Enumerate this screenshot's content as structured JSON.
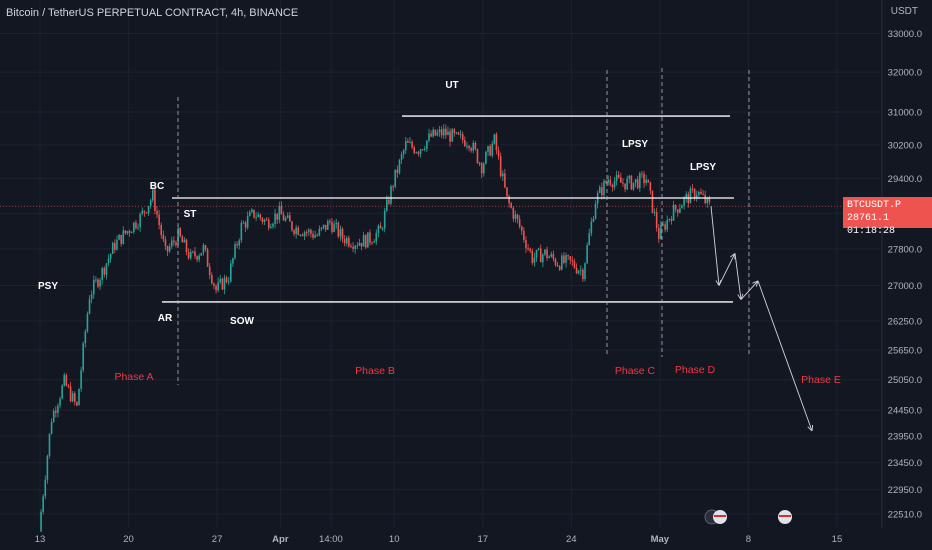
{
  "header": {
    "title": "Bitcoin / TetherUS PERPETUAL CONTRACT, 4h, BINANCE",
    "currency": "USDT"
  },
  "price_tag": {
    "symbol": "BTCUSDT.P",
    "price": "28761.1",
    "countdown": "01:18:28"
  },
  "colors": {
    "background": "#131722",
    "up": "#26a69a",
    "down": "#ef5350",
    "phase_label": "#f23645",
    "lines": "#ffffff"
  },
  "chart_data": {
    "type": "candlestick",
    "y_axis": {
      "ticks": [
        33000.0,
        32000.0,
        31000.0,
        30200.0,
        29400.0,
        28600.0,
        27800.0,
        27000.0,
        26250.0,
        25650.0,
        25050.0,
        24450.0,
        23950.0,
        23450.0,
        22950.0,
        22510.0
      ],
      "tick_labels": [
        "33000.0",
        "32000.0",
        "31000.0",
        "30200.0",
        "29400.0",
        "28600.0",
        "27800.0",
        "27000.0",
        "26250.0",
        "25650.0",
        "25050.0",
        "24450.0",
        "23950.0",
        "23450.0",
        "22950.0",
        "22510.0"
      ],
      "scale": "log",
      "current_price": 28761.1
    },
    "x_axis": {
      "tick_labels": [
        "13",
        "20",
        "27",
        "Apr",
        "14:00",
        "10",
        "17",
        "24",
        "May",
        "8",
        "15"
      ]
    },
    "price_path": [
      [
        "2023-03-13",
        22200
      ],
      [
        "2023-03-14",
        24300
      ],
      [
        "2023-03-15",
        25000
      ],
      [
        "2023-03-16",
        24500
      ],
      [
        "2023-03-17",
        26800
      ],
      [
        "2023-03-18",
        27300
      ],
      [
        "2023-03-19",
        27900
      ],
      [
        "2023-03-20",
        28200
      ],
      [
        "2023-03-21",
        28500
      ],
      [
        "2023-03-22",
        29000
      ],
      [
        "2023-03-23",
        27700
      ],
      [
        "2023-03-24",
        28100
      ],
      [
        "2023-03-25",
        27600
      ],
      [
        "2023-03-26",
        27800
      ],
      [
        "2023-03-27",
        26900
      ],
      [
        "2023-03-28",
        27200
      ],
      [
        "2023-03-29",
        28300
      ],
      [
        "2023-03-30",
        28600
      ],
      [
        "2023-03-31",
        28400
      ],
      [
        "2023-04-01",
        28600
      ],
      [
        "2023-04-02",
        28300
      ],
      [
        "2023-04-03",
        28200
      ],
      [
        "2023-04-04",
        28100
      ],
      [
        "2023-04-05",
        28400
      ],
      [
        "2023-04-06",
        28050
      ],
      [
        "2023-04-07",
        27950
      ],
      [
        "2023-04-08",
        28000
      ],
      [
        "2023-04-09",
        28200
      ],
      [
        "2023-04-10",
        29300
      ],
      [
        "2023-04-11",
        30200
      ],
      [
        "2023-04-12",
        30100
      ],
      [
        "2023-04-13",
        30400
      ],
      [
        "2023-04-14",
        30500
      ],
      [
        "2023-04-15",
        30350
      ],
      [
        "2023-04-16",
        30300
      ],
      [
        "2023-04-17",
        29700
      ],
      [
        "2023-04-18",
        30300
      ],
      [
        "2023-04-19",
        28900
      ],
      [
        "2023-04-20",
        28300
      ],
      [
        "2023-04-21",
        27600
      ],
      [
        "2023-04-22",
        27700
      ],
      [
        "2023-04-23",
        27500
      ],
      [
        "2023-04-24",
        27500
      ],
      [
        "2023-04-25",
        27300
      ],
      [
        "2023-04-26",
        28900
      ],
      [
        "2023-04-27",
        29400
      ],
      [
        "2023-04-28",
        29300
      ],
      [
        "2023-04-29",
        29300
      ],
      [
        "2023-04-30",
        29400
      ],
      [
        "2023-05-01",
        28100
      ],
      [
        "2023-05-02",
        28600
      ],
      [
        "2023-05-03",
        28900
      ],
      [
        "2023-05-04",
        29100
      ],
      [
        "2023-05-05",
        28761.1
      ]
    ],
    "horizontal_levels": [
      30900,
      28950,
      26650
    ],
    "projection_path": [
      28761.1,
      27000,
      27700,
      26700,
      27100,
      24050
    ],
    "annotations": [
      {
        "text": "PSY",
        "kind": "event"
      },
      {
        "text": "BC",
        "kind": "event"
      },
      {
        "text": "ST",
        "kind": "event"
      },
      {
        "text": "AR",
        "kind": "event"
      },
      {
        "text": "SOW",
        "kind": "event"
      },
      {
        "text": "UT",
        "kind": "event"
      },
      {
        "text": "LPSY",
        "kind": "event"
      },
      {
        "text": "LPSY",
        "kind": "event"
      },
      {
        "text": "Phase A",
        "kind": "phase"
      },
      {
        "text": "Phase B",
        "kind": "phase"
      },
      {
        "text": "Phase C",
        "kind": "phase"
      },
      {
        "text": "Phase D",
        "kind": "phase"
      },
      {
        "text": "Phase E",
        "kind": "phase"
      }
    ]
  }
}
